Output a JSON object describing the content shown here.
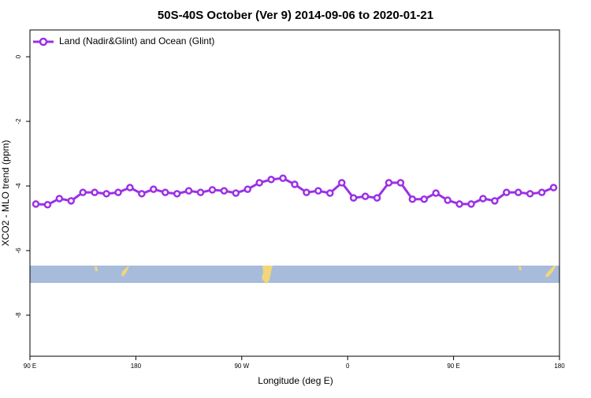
{
  "chart_data": {
    "type": "line",
    "title": "50S-40S October (Ver 9)   2014-09-06 to 2020-01-21",
    "xlabel": "Longitude (deg E)",
    "ylabel": "XCO2 - MLO trend (ppm)",
    "x": [
      95,
      105,
      115,
      125,
      135,
      145,
      155,
      165,
      175,
      185,
      195,
      205,
      215,
      225,
      235,
      245,
      255,
      265,
      275,
      285,
      295,
      305,
      315,
      325,
      335,
      345,
      355,
      365,
      375,
      385,
      395,
      405,
      415,
      425,
      435,
      445,
      455,
      465,
      475,
      485,
      495,
      505,
      515,
      525,
      535
    ],
    "series": [
      {
        "name": "Land (Nadir&Glint) and Ocean (Glint)",
        "color": "#9b30e6",
        "values": [
          -4.56,
          -4.58,
          -4.39,
          -4.46,
          -4.2,
          -4.2,
          -4.24,
          -4.2,
          -4.05,
          -4.24,
          -4.1,
          -4.2,
          -4.24,
          -4.15,
          -4.2,
          -4.12,
          -4.15,
          -4.22,
          -4.1,
          -3.9,
          -3.8,
          -3.76,
          -3.95,
          -4.2,
          -4.15,
          -4.22,
          -3.9,
          -4.37,
          -4.32,
          -4.37,
          -3.9,
          -3.9,
          -4.41,
          -4.41,
          -4.22,
          -4.44,
          -4.56,
          -4.56,
          -4.39,
          -4.46,
          -4.2,
          -4.2,
          -4.24,
          -4.2,
          -4.05
        ]
      }
    ],
    "xlim": [
      90,
      540
    ],
    "ylim": [
      -9.27,
      0.83
    ],
    "xticks": [
      {
        "value": 90,
        "label": "90 E"
      },
      180,
      {
        "value": 270,
        "label": "90 W"
      },
      {
        "value": 360,
        "label": "0"
      },
      {
        "value": 450,
        "label": "90 E"
      },
      {
        "value": 540,
        "label": "180"
      }
    ],
    "yticks": [
      0,
      -2,
      -4,
      -6,
      -8
    ],
    "legend": "top-left"
  }
}
